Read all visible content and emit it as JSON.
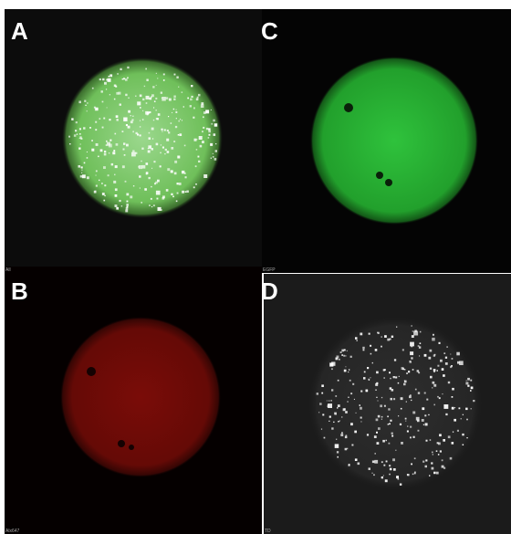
{
  "panels": [
    {
      "letter": "A",
      "channel": "All"
    },
    {
      "letter": "B",
      "channel": "Alx647"
    },
    {
      "letter": "C",
      "channel": "EGFP"
    },
    {
      "letter": "D",
      "channel": "TD"
    }
  ]
}
